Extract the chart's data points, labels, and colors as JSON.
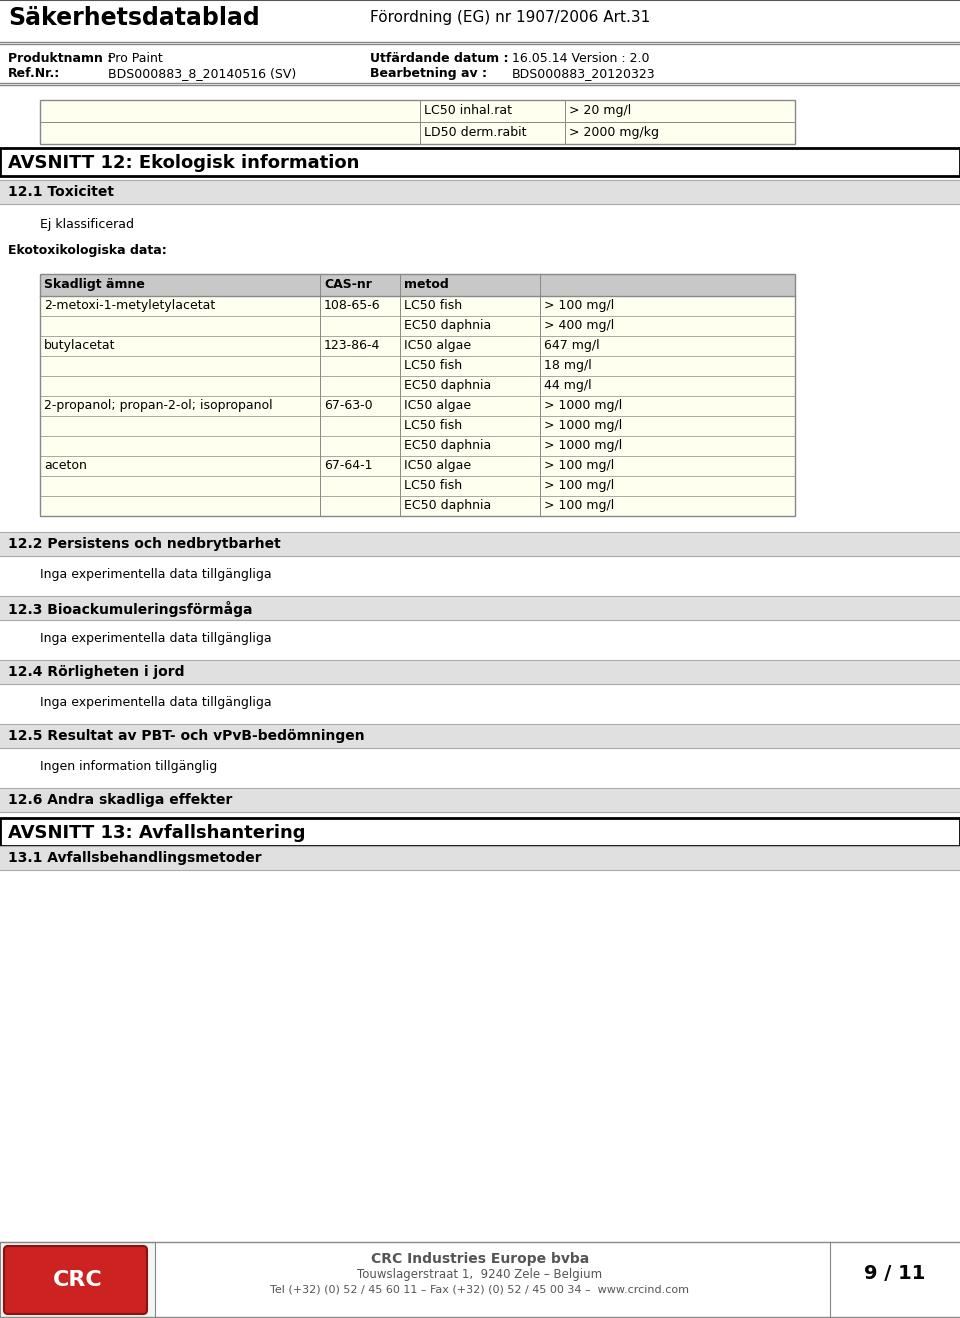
{
  "page_bg": "#ffffff",
  "header_title_left": "Säkerhetsdatablad",
  "header_title_right": "Förordning (EG) nr 1907/2006 Art.31",
  "product_label": "Produktnamn :",
  "product_value": "Pro Paint",
  "refnr_label": "Ref.Nr.:",
  "refnr_value": "BDS000883_8_20140516 (SV)",
  "date_label": "Utfärdande datum :",
  "date_value": "16.05.14 Version : 2.0",
  "bearbetning_label": "Bearbetning av :",
  "bearbetning_value": "BDS000883_20120323",
  "top_table_rows": [
    [
      "LC50 inhal.rat",
      "> 20 mg/l"
    ],
    [
      "LD50 derm.rabit",
      "> 2000 mg/kg"
    ]
  ],
  "section12_title": "AVSNITT 12: Ekologisk information",
  "section121_title": "12.1 Toxicitet",
  "ej_text": "Ej klassificerad",
  "ekotox_label": "Ekotoxikologiska data:",
  "eco_table_headers": [
    "Skadligt ämne",
    "CAS-nr",
    "metod",
    ""
  ],
  "eco_table_rows": [
    [
      "2-metoxi-1-metyletylacetat",
      "108-65-6",
      "LC50 fish",
      "> 100 mg/l"
    ],
    [
      "",
      "",
      "EC50 daphnia",
      "> 400 mg/l"
    ],
    [
      "butylacetat",
      "123-86-4",
      "IC50 algae",
      "647 mg/l"
    ],
    [
      "",
      "",
      "LC50 fish",
      "18 mg/l"
    ],
    [
      "",
      "",
      "EC50 daphnia",
      "44 mg/l"
    ],
    [
      "2-propanol; propan-2-ol; isopropanol",
      "67-63-0",
      "IC50 algae",
      "> 1000 mg/l"
    ],
    [
      "",
      "",
      "LC50 fish",
      "> 1000 mg/l"
    ],
    [
      "",
      "",
      "EC50 daphnia",
      "> 1000 mg/l"
    ],
    [
      "aceton",
      "67-64-1",
      "IC50 algae",
      "> 100 mg/l"
    ],
    [
      "",
      "",
      "LC50 fish",
      "> 100 mg/l"
    ],
    [
      "",
      "",
      "EC50 daphnia",
      "> 100 mg/l"
    ]
  ],
  "section122_title": "12.2 Persistens och nedbrytbarhet",
  "section122_text": "Inga experimentella data tillgängliga",
  "section123_title": "12.3 Bioackumuleringsförmåga",
  "section123_text": "Inga experimentella data tillgängliga",
  "section124_title": "12.4 Rörligheten i jord",
  "section124_text": "Inga experimentella data tillgängliga",
  "section125_title": "12.5 Resultat av PBT- och vPvB-bedömningen",
  "section125_text": "Ingen information tillgänglig",
  "section126_title": "12.6 Andra skadliga effekter",
  "section13_title": "AVSNITT 13: Avfallshantering",
  "section131_title": "13.1 Avfallsbehandlingsmetoder",
  "footer_company": "CRC Industries Europe bvba",
  "footer_address": "Touwslagerstraat 1,  9240 Zele – Belgium",
  "footer_tel": "Tel (+32) (0) 52 / 45 60 11 – Fax (+32) (0) 52 / 45 00 34 –  www.crcind.com",
  "footer_page": "9 / 11",
  "table_header_bg": "#c8c8c8",
  "table_row_bg_light": "#fffff0",
  "section_header_bg": "#e0e0e0",
  "section_box_bg": "#ffffff"
}
